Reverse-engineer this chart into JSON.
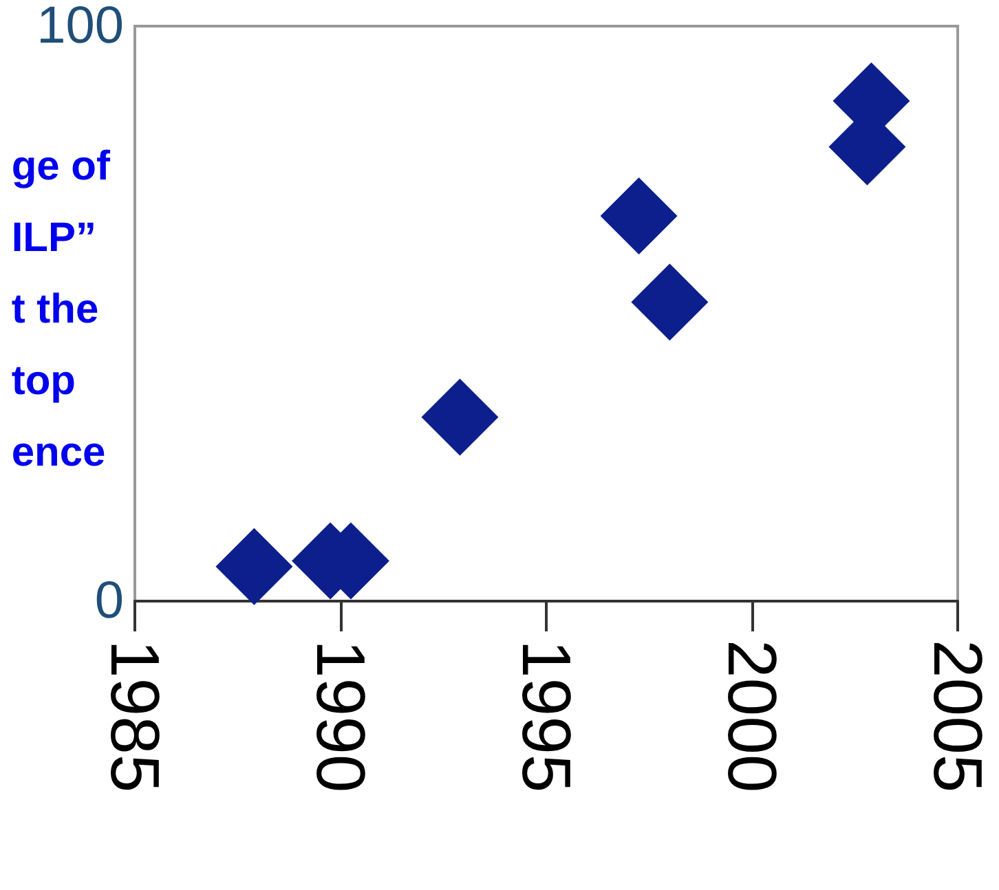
{
  "chart_data": {
    "type": "scatter",
    "ylabel": "ge of\nILP”\nt the\ntop\nence",
    "x": [
      1987.9,
      1989.75,
      1990.25,
      1992.9,
      1997.25,
      1998.0,
      2002.8,
      2002.9
    ],
    "series": [
      {
        "color": "#0d1f8c",
        "values": [
          6,
          7,
          7,
          32,
          67,
          52,
          79,
          87
        ]
      }
    ],
    "xlim": [
      1985,
      2005
    ],
    "xticks": [
      1985,
      1990,
      1995,
      2000,
      2005
    ],
    "ylim": [
      0,
      100
    ],
    "yticks": [
      0,
      100
    ],
    "grid": false,
    "marker": "diamond"
  }
}
